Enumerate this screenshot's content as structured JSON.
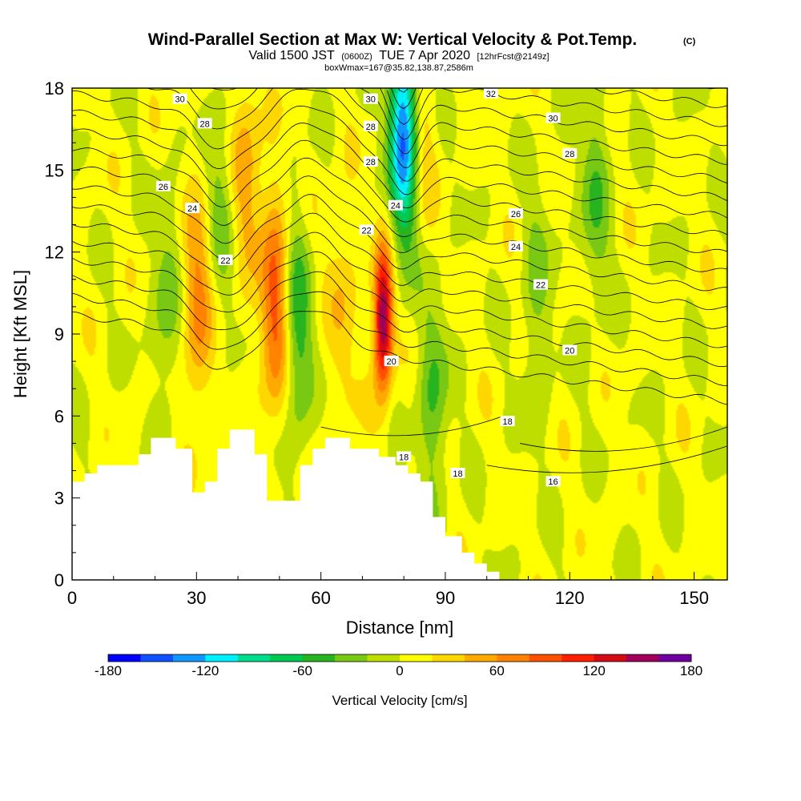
{
  "title": {
    "main": "Wind-Parallel Section at Max W: Vertical Velocity & Pot.Temp.",
    "copyright": "(C)",
    "valid_prefix": "Valid 1500 JST",
    "utc": "(0600Z)",
    "valid_date": "TUE 7 Apr 2020",
    "forecast": "[12hrFcst@2149z]",
    "box_info": "boxWmax=167@35.82,138.87,2586m"
  },
  "chart_data": {
    "type": "heatmap",
    "xlabel": "Distance [nm]",
    "ylabel": "Height [Kft MSL]",
    "xlim": [
      0,
      158
    ],
    "ylim": [
      0,
      18
    ],
    "x_ticks": [
      "0",
      "30",
      "60",
      "90",
      "120",
      "150"
    ],
    "x_tick_values": [
      0,
      30,
      60,
      90,
      120,
      150
    ],
    "y_ticks": [
      "0",
      "3",
      "6",
      "9",
      "12",
      "15",
      "18"
    ],
    "y_tick_values": [
      0,
      3,
      6,
      9,
      12,
      15,
      18
    ],
    "colorbar": {
      "title": "Vertical Velocity [cm/s]",
      "labels": [
        "-180",
        "-120",
        "-60",
        "0",
        "60",
        "120",
        "180"
      ],
      "label_values": [
        -180,
        -120,
        -60,
        0,
        60,
        120,
        180
      ],
      "min": -180,
      "max": 180,
      "colors": [
        "#0000ff",
        "#1050ff",
        "#0f96ff",
        "#00f0ff",
        "#00dc8c",
        "#00c850",
        "#28b41e",
        "#78c814",
        "#bede00",
        "#ffff00",
        "#ffd700",
        "#ffaa00",
        "#ff8200",
        "#ff5000",
        "#ff1e00",
        "#d20a14",
        "#a0005a",
        "#6e00a0"
      ]
    },
    "vertical_velocity_features": [
      {
        "type": "updraft",
        "x": 75,
        "z": 9.5,
        "max_w": 167
      },
      {
        "type": "updraft",
        "x": 49,
        "z": 10,
        "max_w": 85
      },
      {
        "type": "updraft",
        "x": 30,
        "z": 10,
        "max_w": 60
      },
      {
        "type": "updraft",
        "x": 42,
        "z": 15,
        "max_w": 45
      },
      {
        "type": "updraft",
        "x": 84,
        "z": 16,
        "max_w": 35
      },
      {
        "type": "updraft",
        "x": 65,
        "z": 10,
        "max_w": 30
      },
      {
        "type": "downdraft",
        "x": 80,
        "z": 16.5,
        "max_w": -150
      },
      {
        "type": "downdraft",
        "x": 54,
        "z": 9,
        "max_w": -60
      },
      {
        "type": "downdraft",
        "x": 87,
        "z": 6.5,
        "max_w": -45
      },
      {
        "type": "downdraft",
        "x": 126,
        "z": 14,
        "max_w": -40
      },
      {
        "type": "downdraft",
        "x": 23,
        "z": 10,
        "max_w": -35
      },
      {
        "type": "downdraft",
        "x": 36,
        "z": 14,
        "max_w": -30
      },
      {
        "type": "downdraft",
        "x": 112,
        "z": 10,
        "max_w": -30
      }
    ],
    "theta_contour_labels": [
      {
        "text": "30",
        "x": 26,
        "z": 17.6
      },
      {
        "text": "28",
        "x": 32,
        "z": 16.7
      },
      {
        "text": "26",
        "x": 22,
        "z": 14.4
      },
      {
        "text": "24",
        "x": 29,
        "z": 13.6
      },
      {
        "text": "22",
        "x": 37,
        "z": 11.7
      },
      {
        "text": "30",
        "x": 72,
        "z": 17.6
      },
      {
        "text": "28",
        "x": 72,
        "z": 16.6
      },
      {
        "text": "28",
        "x": 72,
        "z": 15.3
      },
      {
        "text": "24",
        "x": 78,
        "z": 13.7
      },
      {
        "text": "22",
        "x": 71,
        "z": 12.8
      },
      {
        "text": "20",
        "x": 77,
        "z": 8.0
      },
      {
        "text": "18",
        "x": 80,
        "z": 4.5
      },
      {
        "text": "32",
        "x": 101,
        "z": 17.8
      },
      {
        "text": "30",
        "x": 116,
        "z": 16.9
      },
      {
        "text": "28",
        "x": 120,
        "z": 15.6
      },
      {
        "text": "26",
        "x": 107,
        "z": 13.4
      },
      {
        "text": "24",
        "x": 107,
        "z": 12.2
      },
      {
        "text": "22",
        "x": 113,
        "z": 10.8
      },
      {
        "text": "20",
        "x": 120,
        "z": 8.4
      },
      {
        "text": "18",
        "x": 105,
        "z": 5.8
      },
      {
        "text": "18",
        "x": 93,
        "z": 3.9
      },
      {
        "text": "16",
        "x": 116,
        "z": 3.6
      }
    ],
    "terrain_profile": [
      [
        0,
        3.6
      ],
      [
        3,
        3.6
      ],
      [
        3,
        3.9
      ],
      [
        6,
        3.9
      ],
      [
        6,
        4.2
      ],
      [
        16,
        4.2
      ],
      [
        16,
        4.6
      ],
      [
        19,
        4.6
      ],
      [
        19,
        5.2
      ],
      [
        25,
        5.2
      ],
      [
        25,
        4.8
      ],
      [
        29,
        4.8
      ],
      [
        29,
        3.2
      ],
      [
        32,
        3.2
      ],
      [
        32,
        3.6
      ],
      [
        35,
        3.6
      ],
      [
        35,
        4.8
      ],
      [
        38,
        4.8
      ],
      [
        38,
        5.5
      ],
      [
        44,
        5.5
      ],
      [
        44,
        4.6
      ],
      [
        47,
        4.6
      ],
      [
        47,
        2.9
      ],
      [
        55,
        2.9
      ],
      [
        55,
        4.2
      ],
      [
        58,
        4.2
      ],
      [
        58,
        4.8
      ],
      [
        61,
        4.8
      ],
      [
        61,
        5.2
      ],
      [
        67,
        5.2
      ],
      [
        67,
        4.8
      ],
      [
        74,
        4.8
      ],
      [
        74,
        4.5
      ],
      [
        78,
        4.5
      ],
      [
        78,
        4.2
      ],
      [
        81,
        4.2
      ],
      [
        81,
        3.9
      ],
      [
        84,
        3.9
      ],
      [
        84,
        3.6
      ],
      [
        87,
        3.6
      ],
      [
        87,
        2.3
      ],
      [
        90,
        2.3
      ],
      [
        90,
        1.6
      ],
      [
        94,
        1.6
      ],
      [
        94,
        1.0
      ],
      [
        97,
        1.0
      ],
      [
        97,
        0.6
      ],
      [
        100,
        0.6
      ],
      [
        100,
        0.3
      ],
      [
        103,
        0.3
      ],
      [
        103,
        0.0
      ]
    ]
  }
}
